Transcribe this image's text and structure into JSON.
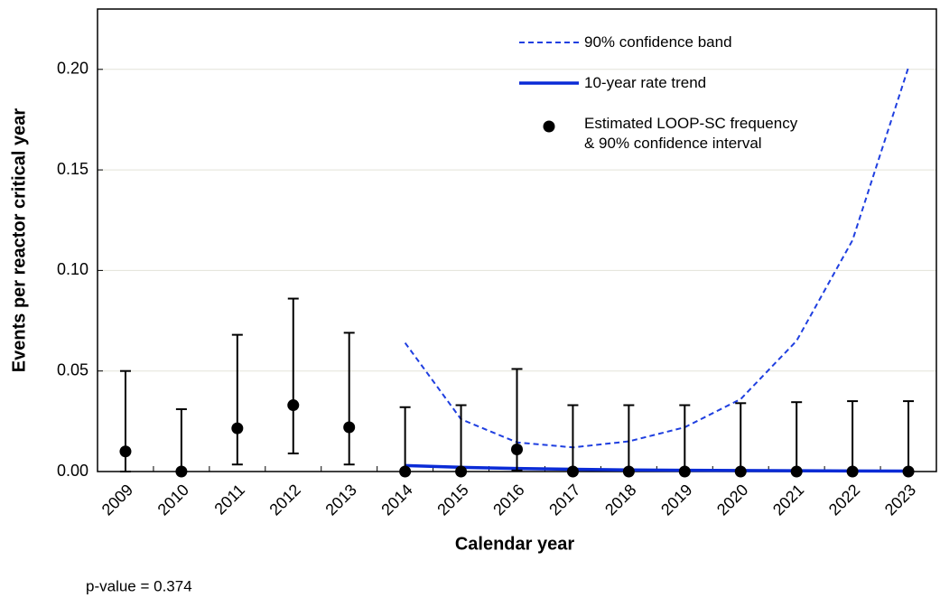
{
  "chart_data": {
    "type": "line",
    "x_label": "Calendar year",
    "y_label": "Events per reactor critical year",
    "annotation": "p-value = 0.374",
    "categories": [
      "2009",
      "2010",
      "2011",
      "2012",
      "2013",
      "2014",
      "2015",
      "2016",
      "2017",
      "2018",
      "2019",
      "2020",
      "2021",
      "2022",
      "2023"
    ],
    "ylim": [
      0,
      0.23
    ],
    "yticks": [
      {
        "value": 0,
        "label": "0.00"
      },
      {
        "value": 0.05,
        "label": "0.05"
      },
      {
        "value": 0.1,
        "label": "0.10"
      },
      {
        "value": 0.15,
        "label": "0.15"
      },
      {
        "value": 0.2,
        "label": "0.20"
      }
    ],
    "grid": true,
    "legend": "upper right",
    "series": [
      {
        "name": "90% confidence band",
        "color": "#1f3fe0",
        "style": "dashed",
        "values": [
          null,
          null,
          null,
          null,
          null,
          0.064,
          0.026,
          0.0145,
          0.012,
          0.015,
          0.022,
          0.036,
          0.065,
          0.115,
          0.201
        ]
      },
      {
        "name": "10-year rate trend",
        "color": "#0a2bd6",
        "style": "solid",
        "values": [
          null,
          null,
          null,
          null,
          null,
          0.003,
          0.0021,
          0.0015,
          0.0011,
          0.0008,
          0.0006,
          0.0005,
          0.0004,
          0.0003,
          0.0002
        ]
      },
      {
        "name": "Estimated LOOP-SC frequency\n& 90% confidence interval",
        "color": "#000000",
        "style": "points",
        "values": [
          0.01,
          0,
          0.0215,
          0.033,
          0.022,
          0,
          0,
          0.011,
          0,
          0,
          0,
          0,
          0,
          0,
          0
        ],
        "lower": [
          0,
          0,
          0.0035,
          0.009,
          0.0035,
          0,
          0,
          0.0005,
          0,
          0,
          0,
          0,
          0,
          0,
          0
        ],
        "upper": [
          0.05,
          0.031,
          0.068,
          0.086,
          0.069,
          0.032,
          0.033,
          0.051,
          0.033,
          0.033,
          0.033,
          0.034,
          0.0345,
          0.035,
          0.035
        ]
      }
    ]
  }
}
